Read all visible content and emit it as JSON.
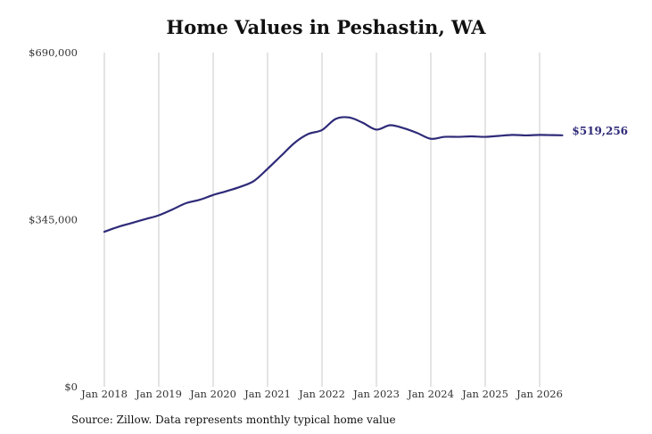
{
  "chart_data": {
    "type": "line",
    "title": "Home Values in Peshastin, WA",
    "xlabel": "",
    "ylabel": "",
    "ylim": [
      0,
      690000
    ],
    "y_ticks": [
      0,
      345000,
      690000
    ],
    "y_tick_labels": [
      "$0",
      "$345,000",
      "$690,000"
    ],
    "x_ticks": [
      "2018-01",
      "2019-01",
      "2020-01",
      "2021-01",
      "2022-01",
      "2023-01",
      "2024-01",
      "2025-01",
      "2026-01"
    ],
    "x_tick_labels": [
      "Jan 2018",
      "Jan 2019",
      "Jan 2020",
      "Jan 2021",
      "Jan 2022",
      "Jan 2023",
      "Jan 2024",
      "Jan 2025",
      "Jan 2026"
    ],
    "grid": "vertical",
    "line_color": "#2e2a78",
    "series": [
      {
        "x": [
          "2018-01",
          "2018-04",
          "2018-07",
          "2018-10",
          "2019-01",
          "2019-04",
          "2019-07",
          "2019-10",
          "2020-01",
          "2020-04",
          "2020-07",
          "2020-10",
          "2021-01",
          "2021-04",
          "2021-07",
          "2021-10",
          "2022-01",
          "2022-04",
          "2022-07",
          "2022-10",
          "2023-01",
          "2023-04",
          "2023-07",
          "2023-10",
          "2024-01",
          "2024-04",
          "2024-07",
          "2024-10",
          "2025-01",
          "2025-04",
          "2025-07",
          "2025-10",
          "2026-01",
          "2026-04",
          "2026-06"
        ],
        "values": [
          320000,
          330000,
          338000,
          346000,
          354000,
          366000,
          379000,
          386000,
          396000,
          404000,
          413000,
          425000,
          450000,
          477000,
          504000,
          522000,
          530000,
          553000,
          556000,
          545000,
          531000,
          540000,
          534000,
          524000,
          512000,
          516000,
          516000,
          517000,
          516000,
          518000,
          520000,
          519000,
          520000,
          519500,
          519256
        ]
      }
    ],
    "end_label": "$519,256",
    "source": "Source: Zillow. Data represents monthly typical home value"
  }
}
